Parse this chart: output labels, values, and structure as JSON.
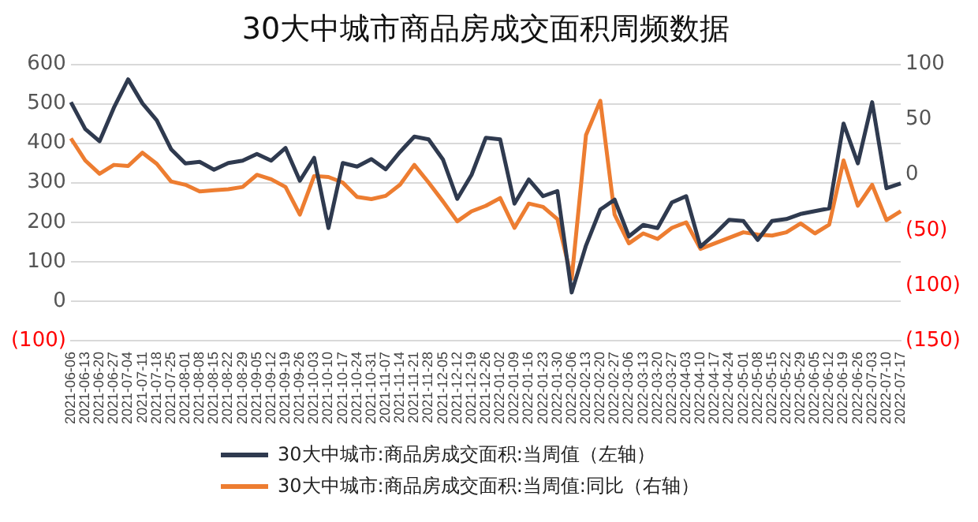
{
  "chart_data": {
    "type": "line",
    "title": "30大中城市商品房成交面积周频数据",
    "categories": [
      "2021-06-06",
      "2021-06-13",
      "2021-06-20",
      "2021-06-27",
      "2021-07-04",
      "2021-07-11",
      "2021-07-18",
      "2021-07-25",
      "2021-08-01",
      "2021-08-08",
      "2021-08-15",
      "2021-08-22",
      "2021-08-29",
      "2021-09-05",
      "2021-09-12",
      "2021-09-19",
      "2021-09-26",
      "2021-10-03",
      "2021-10-10",
      "2021-10-17",
      "2021-10-24",
      "2021-10-31",
      "2021-11-07",
      "2021-11-14",
      "2021-11-21",
      "2021-11-28",
      "2021-12-05",
      "2021-12-12",
      "2021-12-19",
      "2021-12-26",
      "2022-01-02",
      "2022-01-09",
      "2022-01-16",
      "2022-01-23",
      "2022-01-30",
      "2022-02-06",
      "2022-02-13",
      "2022-02-20",
      "2022-02-27",
      "2022-03-06",
      "2022-03-13",
      "2022-03-20",
      "2022-03-27",
      "2022-04-03",
      "2022-04-10",
      "2022-04-17",
      "2022-04-24",
      "2022-05-01",
      "2022-05-08",
      "2022-05-15",
      "2022-05-22",
      "2022-05-29",
      "2022-06-05",
      "2022-06-12",
      "2022-06-19",
      "2022-06-26",
      "2022-07-03",
      "2022-07-10",
      "2022-07-17"
    ],
    "series": [
      {
        "name": "30大中城市:商品房成交面积:当周值（左轴）",
        "color": "#2f3a4f",
        "values": [
          504,
          436,
          405,
          490,
          562,
          501,
          458,
          385,
          349,
          353,
          333,
          350,
          356,
          373,
          356,
          388,
          305,
          363,
          185,
          350,
          341,
          360,
          334,
          378,
          417,
          410,
          359,
          259,
          320,
          414,
          410,
          247,
          308,
          266,
          279,
          22,
          141,
          232,
          257,
          164,
          193,
          185,
          250,
          266,
          138,
          170,
          206,
          203,
          155,
          203,
          208,
          221,
          228,
          235,
          450,
          349,
          504,
          286,
          298
        ]
      },
      {
        "name": "30大中城市:商品房成交面积:当周值:同比（右轴）",
        "color": "#ed7d31",
        "axis": "y2",
        "values": [
          33,
          13,
          1,
          9,
          8,
          20,
          10,
          -6,
          -9,
          -15,
          -14,
          -13,
          -11,
          0,
          -4,
          -11,
          -36,
          -1,
          -2,
          -7,
          -20,
          -22,
          -19,
          -9,
          9,
          -7,
          -24,
          -42,
          -33,
          -28,
          -21,
          -48,
          -26,
          -29,
          -40,
          -94,
          36,
          67,
          -36,
          -62,
          -53,
          -58,
          -48,
          -43,
          -67,
          -62,
          -57,
          -52,
          -54,
          -55,
          -52,
          -44,
          -53,
          -45,
          13,
          -28,
          -9,
          -41,
          -33
        ]
      }
    ],
    "ylim": [
      -100,
      600
    ],
    "yticks": [
      {
        "value": -100,
        "label": "(100)"
      },
      0,
      100,
      200,
      300,
      400,
      500,
      600
    ],
    "y2lim": [
      -150,
      100
    ],
    "y2ticks": [
      {
        "value": -150,
        "label": "(150)"
      },
      {
        "value": -100,
        "label": "(100)"
      },
      {
        "value": -50,
        "label": "(50)"
      },
      0,
      50,
      100
    ],
    "grid": "y",
    "legend": "bottom",
    "marker": "none",
    "line_style": "solid"
  }
}
